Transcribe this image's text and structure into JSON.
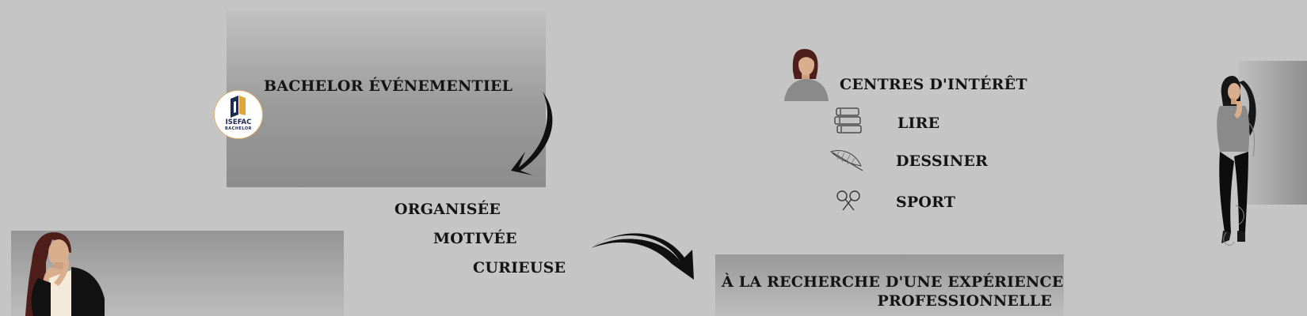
{
  "education": {
    "degree": "BACHELOR ÉVÉNEMENTIEL",
    "logo_name": "ISEFAC",
    "logo_sub": "BACHELOR"
  },
  "qualities": [
    "ORGANISÉE",
    "MOTIVÉE",
    "CURIEUSE"
  ],
  "objective": {
    "line1": "À LA RECHERCHE D'UNE EXPÉRIENCE",
    "line2": "PROFESSIONNELLE"
  },
  "interests": {
    "heading": "CENTRES D'INTÉRÊT",
    "items": [
      {
        "label": "LIRE",
        "icon": "books-icon"
      },
      {
        "label": "DESSINER",
        "icon": "feather-icon"
      },
      {
        "label": "SPORT",
        "icon": "rackets-icon"
      }
    ]
  },
  "colors": {
    "background": "#c5c5c5",
    "text": "#141414",
    "logo_navy": "#1d2a4f",
    "logo_gold": "#e0a53a"
  }
}
